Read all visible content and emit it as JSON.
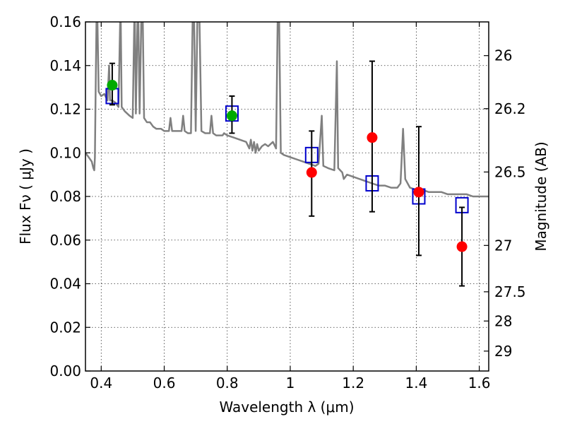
{
  "chart_data": {
    "type": "scatter",
    "xlabel": "Wavelength  λ (μm)",
    "ylabel": "Flux  Fν  ( μJy )",
    "ylabel2": "Magnitude (AB)",
    "xlim": [
      0.35,
      1.63
    ],
    "ylim": [
      0.0,
      0.16
    ],
    "grid": true,
    "x_ticks": [
      {
        "v": 0.4,
        "label": "0.4"
      },
      {
        "v": 0.6,
        "label": "0.6"
      },
      {
        "v": 0.8,
        "label": "0.8"
      },
      {
        "v": 1.0,
        "label": "1"
      },
      {
        "v": 1.2,
        "label": "1.2"
      },
      {
        "v": 1.4,
        "label": "1.4"
      },
      {
        "v": 1.6,
        "label": "1.6"
      }
    ],
    "y_ticks": [
      {
        "v": 0.0,
        "label": "0.00"
      },
      {
        "v": 0.02,
        "label": "0.02"
      },
      {
        "v": 0.04,
        "label": "0.04"
      },
      {
        "v": 0.06,
        "label": "0.06"
      },
      {
        "v": 0.08,
        "label": "0.08"
      },
      {
        "v": 0.1,
        "label": "0.10"
      },
      {
        "v": 0.12,
        "label": "0.12"
      },
      {
        "v": 0.14,
        "label": "0.14"
      },
      {
        "v": 0.16,
        "label": "0.16"
      }
    ],
    "y2_ticks": [
      {
        "mag": 26,
        "label": "26"
      },
      {
        "mag": 26.2,
        "label": "26.2"
      },
      {
        "mag": 26.5,
        "label": "26.5"
      },
      {
        "mag": 27,
        "label": "27"
      },
      {
        "mag": 27.5,
        "label": "27.5"
      },
      {
        "mag": 28,
        "label": "28"
      },
      {
        "mag": 29,
        "label": "29"
      }
    ],
    "sed_model": {
      "color": "#808080",
      "points": [
        [
          0.35,
          0.1
        ],
        [
          0.36,
          0.098
        ],
        [
          0.37,
          0.096
        ],
        [
          0.375,
          0.093
        ],
        [
          0.378,
          0.092
        ],
        [
          0.38,
          0.098
        ],
        [
          0.382,
          0.125
        ],
        [
          0.385,
          0.16
        ],
        [
          0.388,
          0.16
        ],
        [
          0.392,
          0.128
        ],
        [
          0.4,
          0.126
        ],
        [
          0.41,
          0.127
        ],
        [
          0.42,
          0.124
        ],
        [
          0.425,
          0.14
        ],
        [
          0.428,
          0.124
        ],
        [
          0.435,
          0.124
        ],
        [
          0.445,
          0.123
        ],
        [
          0.455,
          0.121
        ],
        [
          0.46,
          0.16
        ],
        [
          0.462,
          0.16
        ],
        [
          0.465,
          0.121
        ],
        [
          0.475,
          0.119
        ],
        [
          0.49,
          0.117
        ],
        [
          0.5,
          0.116
        ],
        [
          0.505,
          0.16
        ],
        [
          0.507,
          0.16
        ],
        [
          0.51,
          0.118
        ],
        [
          0.515,
          0.16
        ],
        [
          0.518,
          0.16
        ],
        [
          0.522,
          0.118
        ],
        [
          0.527,
          0.16
        ],
        [
          0.532,
          0.16
        ],
        [
          0.536,
          0.116
        ],
        [
          0.545,
          0.114
        ],
        [
          0.555,
          0.114
        ],
        [
          0.565,
          0.112
        ],
        [
          0.575,
          0.111
        ],
        [
          0.59,
          0.111
        ],
        [
          0.6,
          0.11
        ],
        [
          0.61,
          0.11
        ],
        [
          0.615,
          0.11
        ],
        [
          0.62,
          0.116
        ],
        [
          0.625,
          0.11
        ],
        [
          0.64,
          0.11
        ],
        [
          0.655,
          0.11
        ],
        [
          0.66,
          0.117
        ],
        [
          0.665,
          0.11
        ],
        [
          0.675,
          0.109
        ],
        [
          0.685,
          0.109
        ],
        [
          0.69,
          0.16
        ],
        [
          0.695,
          0.16
        ],
        [
          0.7,
          0.11
        ],
        [
          0.705,
          0.16
        ],
        [
          0.712,
          0.16
        ],
        [
          0.718,
          0.11
        ],
        [
          0.73,
          0.109
        ],
        [
          0.745,
          0.109
        ],
        [
          0.75,
          0.117
        ],
        [
          0.755,
          0.109
        ],
        [
          0.765,
          0.108
        ],
        [
          0.775,
          0.108
        ],
        [
          0.785,
          0.108
        ],
        [
          0.79,
          0.109
        ],
        [
          0.8,
          0.108
        ],
        [
          0.82,
          0.107
        ],
        [
          0.84,
          0.106
        ],
        [
          0.86,
          0.105
        ],
        [
          0.87,
          0.102
        ],
        [
          0.875,
          0.106
        ],
        [
          0.88,
          0.101
        ],
        [
          0.885,
          0.105
        ],
        [
          0.89,
          0.1
        ],
        [
          0.895,
          0.104
        ],
        [
          0.9,
          0.101
        ],
        [
          0.91,
          0.103
        ],
        [
          0.92,
          0.104
        ],
        [
          0.93,
          0.103
        ],
        [
          0.945,
          0.105
        ],
        [
          0.955,
          0.102
        ],
        [
          0.96,
          0.16
        ],
        [
          0.965,
          0.16
        ],
        [
          0.97,
          0.1
        ],
        [
          0.98,
          0.099
        ],
        [
          1.0,
          0.098
        ],
        [
          1.02,
          0.097
        ],
        [
          1.04,
          0.096
        ],
        [
          1.06,
          0.095
        ],
        [
          1.08,
          0.094
        ],
        [
          1.09,
          0.095
        ],
        [
          1.1,
          0.117
        ],
        [
          1.105,
          0.094
        ],
        [
          1.12,
          0.093
        ],
        [
          1.14,
          0.092
        ],
        [
          1.148,
          0.142
        ],
        [
          1.152,
          0.093
        ],
        [
          1.165,
          0.091
        ],
        [
          1.17,
          0.088
        ],
        [
          1.18,
          0.09
        ],
        [
          1.2,
          0.089
        ],
        [
          1.22,
          0.088
        ],
        [
          1.24,
          0.087
        ],
        [
          1.26,
          0.086
        ],
        [
          1.28,
          0.085
        ],
        [
          1.3,
          0.085
        ],
        [
          1.32,
          0.084
        ],
        [
          1.34,
          0.084
        ],
        [
          1.35,
          0.086
        ],
        [
          1.358,
          0.111
        ],
        [
          1.365,
          0.088
        ],
        [
          1.38,
          0.084
        ],
        [
          1.4,
          0.083
        ],
        [
          1.42,
          0.083
        ],
        [
          1.44,
          0.082
        ],
        [
          1.46,
          0.082
        ],
        [
          1.48,
          0.082
        ],
        [
          1.5,
          0.081
        ],
        [
          1.52,
          0.081
        ],
        [
          1.54,
          0.081
        ],
        [
          1.56,
          0.081
        ],
        [
          1.58,
          0.08
        ],
        [
          1.6,
          0.08
        ],
        [
          1.63,
          0.08
        ]
      ]
    },
    "model_boxes": [
      {
        "x": 0.435,
        "y": 0.126
      },
      {
        "x": 0.815,
        "y": 0.118
      },
      {
        "x": 1.068,
        "y": 0.099
      },
      {
        "x": 1.26,
        "y": 0.086
      },
      {
        "x": 1.408,
        "y": 0.08
      },
      {
        "x": 1.545,
        "y": 0.076
      }
    ],
    "observations": [
      {
        "x": 0.435,
        "y": 0.131,
        "yerr_low": 0.122,
        "yerr_high": 0.141,
        "color": "#00aa00"
      },
      {
        "x": 0.815,
        "y": 0.117,
        "yerr_low": 0.109,
        "yerr_high": 0.126,
        "color": "#00aa00"
      },
      {
        "x": 1.068,
        "y": 0.091,
        "yerr_low": 0.071,
        "yerr_high": 0.11,
        "color": "#ff0000"
      },
      {
        "x": 1.26,
        "y": 0.107,
        "yerr_low": 0.073,
        "yerr_high": 0.142,
        "color": "#ff0000"
      },
      {
        "x": 1.408,
        "y": 0.082,
        "yerr_low": 0.053,
        "yerr_high": 0.112,
        "color": "#ff0000"
      },
      {
        "x": 1.545,
        "y": 0.057,
        "yerr_low": 0.039,
        "yerr_high": 0.075,
        "color": "#ff0000"
      }
    ],
    "colors": {
      "model_box": "#0000cc",
      "errorbar": "#000000",
      "axis": "#000000"
    }
  }
}
